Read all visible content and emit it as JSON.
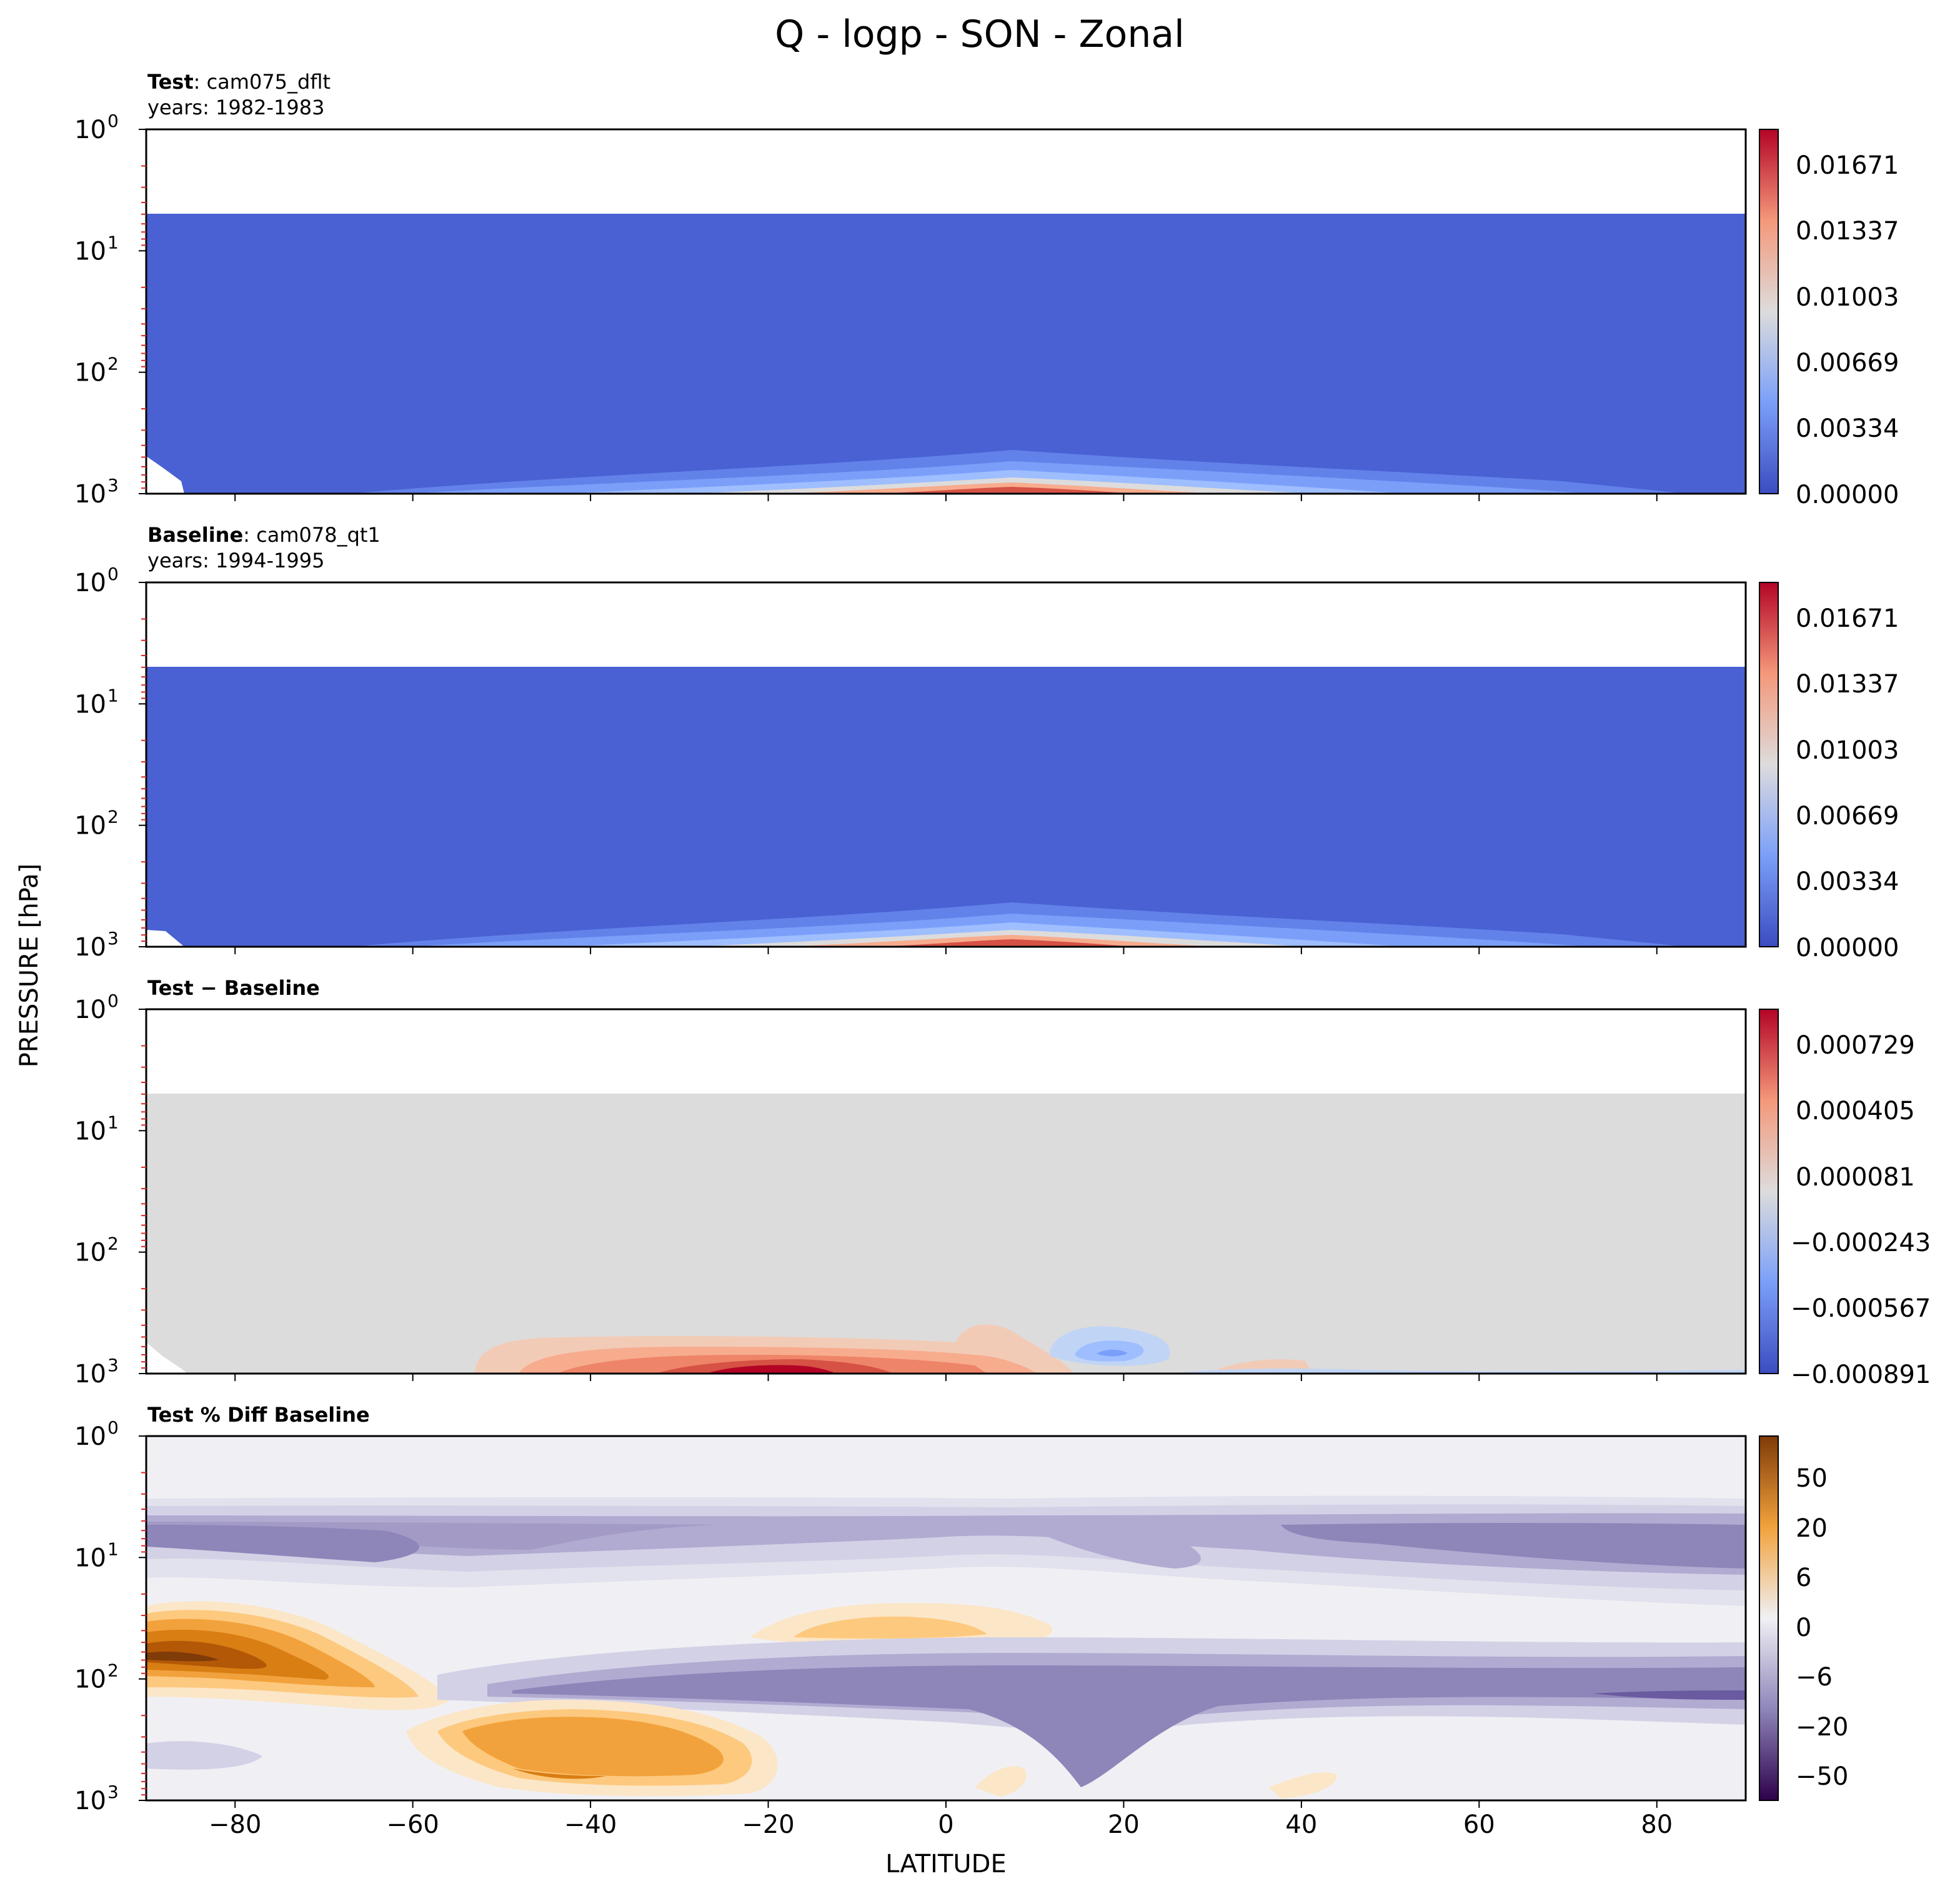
{
  "figure": {
    "title": "Q - logp - SON - Zonal",
    "ylabel": "PRESSURE [hPa]",
    "xlabel": "LATITUDE"
  },
  "chart_data": [
    {
      "type": "heatmap",
      "id": "test",
      "subtitle_bold": "Test",
      "subtitle_rest": ": cam075_dflt",
      "years": "years: 1982-1983",
      "xlim": [
        -90,
        90
      ],
      "ylim": [
        1000,
        1
      ],
      "yscale": "log",
      "x_ticks": [
        "−80",
        "−60",
        "−40",
        "−20",
        "0",
        "20",
        "40",
        "60",
        "80"
      ],
      "x_tick_values": [
        -80,
        -60,
        -40,
        -20,
        0,
        20,
        40,
        60,
        80
      ],
      "y_ticks": [
        "10^0",
        "10^1",
        "10^2",
        "10^3"
      ],
      "y_tick_values": [
        1,
        10,
        100,
        1000
      ],
      "colorbar_ticks": [
        "0.00000",
        "0.00334",
        "0.00669",
        "0.01003",
        "0.01337",
        "0.01671"
      ],
      "colorbar_levels": [
        0.0,
        0.00334,
        0.00669,
        0.01003,
        0.01337,
        0.01671
      ],
      "colormap": "coolwarm",
      "colors": [
        "#4961d2",
        "#6282ea",
        "#7b9ff9",
        "#9ebeff",
        "#c0d4f5",
        "#dddcdc",
        "#f2cbb7",
        "#f7ac8e",
        "#ee8468",
        "#d65244",
        "#b40426"
      ],
      "field_top_hpa": 5
    },
    {
      "type": "heatmap",
      "id": "baseline",
      "subtitle_bold": "Baseline",
      "subtitle_rest": ": cam078_qt1",
      "years": "years: 1994-1995",
      "xlim": [
        -90,
        90
      ],
      "ylim": [
        1000,
        1
      ],
      "yscale": "log",
      "x_ticks": [
        "−80",
        "−60",
        "−40",
        "−20",
        "0",
        "20",
        "40",
        "60",
        "80"
      ],
      "y_ticks": [
        "10^0",
        "10^1",
        "10^2",
        "10^3"
      ],
      "colorbar_ticks": [
        "0.00000",
        "0.00334",
        "0.00669",
        "0.01003",
        "0.01337",
        "0.01671"
      ],
      "colorbar_levels": [
        0.0,
        0.00334,
        0.00669,
        0.01003,
        0.01337,
        0.01671
      ],
      "colormap": "coolwarm",
      "field_top_hpa": 5
    },
    {
      "type": "heatmap",
      "id": "diff",
      "subtitle_bold": "Test − Baseline",
      "subtitle_rest": "",
      "years": "",
      "xlim": [
        -90,
        90
      ],
      "ylim": [
        1000,
        1
      ],
      "yscale": "log",
      "x_ticks": [
        "−80",
        "−60",
        "−40",
        "−20",
        "0",
        "20",
        "40",
        "60",
        "80"
      ],
      "y_ticks": [
        "10^0",
        "10^1",
        "10^2",
        "10^3"
      ],
      "colorbar_ticks": [
        "−0.000891",
        "−0.000567",
        "−0.000243",
        "0.000081",
        "0.000405",
        "0.000729"
      ],
      "colorbar_levels": [
        -0.000891,
        -0.000567,
        -0.000243,
        8.1e-05,
        0.000405,
        0.000729
      ],
      "colormap": "coolwarm",
      "field_top_hpa": 5
    },
    {
      "type": "heatmap",
      "id": "pct",
      "subtitle_bold": "Test % Diff Baseline",
      "subtitle_rest": "",
      "years": "",
      "xlim": [
        -90,
        90
      ],
      "ylim": [
        1000,
        1
      ],
      "yscale": "log",
      "x_ticks": [
        "−80",
        "−60",
        "−40",
        "−20",
        "0",
        "20",
        "40",
        "60",
        "80"
      ],
      "y_ticks": [
        "10^0",
        "10^1",
        "10^2",
        "10^3"
      ],
      "colorbar_ticks": [
        "50",
        "20",
        "6",
        "0",
        "−6",
        "−20",
        "−50"
      ],
      "colorbar_levels": [
        50,
        20,
        6,
        0,
        -6,
        -20,
        -50
      ],
      "colormap": "PuOr",
      "colors": [
        "#2d004b",
        "#4a2a80",
        "#6a5aa0",
        "#8e85b9",
        "#b1aad1",
        "#d3d1e6",
        "#e8e8f0",
        "#f0f0f4",
        "#fbe6c8",
        "#fdc97e",
        "#f2a23c",
        "#d97e13",
        "#b35806",
        "#7f3b08"
      ]
    }
  ]
}
